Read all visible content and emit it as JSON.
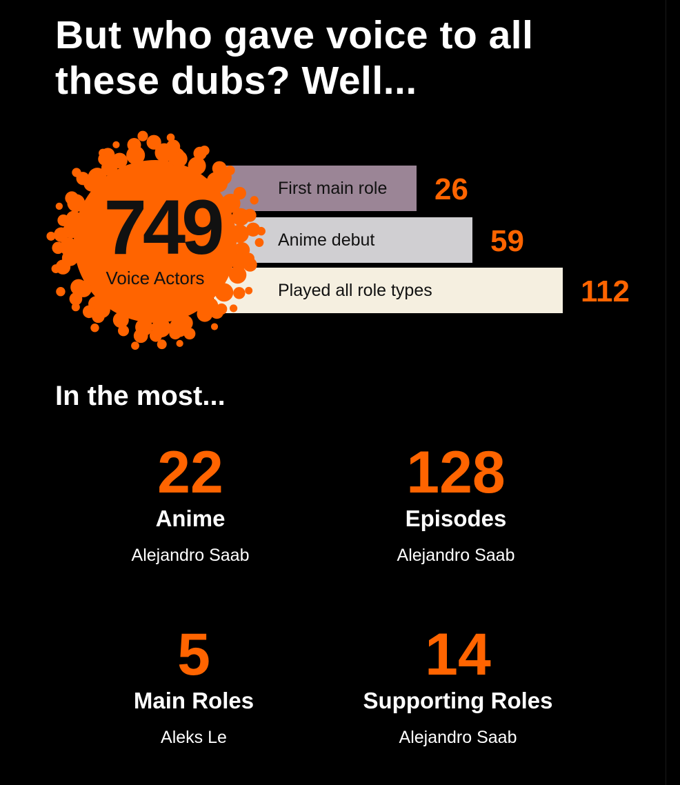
{
  "title": "But who gave voice to all these dubs? Well...",
  "colors": {
    "accent": "#ff6400",
    "background": "#000000"
  },
  "summary": {
    "total": "749",
    "total_label": "Voice Actors"
  },
  "chart_data": {
    "type": "bar",
    "orientation": "horizontal",
    "categories": [
      "First main role",
      "Anime debut",
      "Played all role types"
    ],
    "values": [
      26,
      59,
      112
    ],
    "bar_colors": [
      "#9b8596",
      "#d0cfd2",
      "#f5efe0"
    ]
  },
  "section_title": "In the most...",
  "stats": [
    {
      "value": "22",
      "label": "Anime",
      "person": "Alejandro Saab"
    },
    {
      "value": "128",
      "label": "Episodes",
      "person": "Alejandro Saab"
    },
    {
      "value": "5",
      "label": "Main Roles",
      "person": "Aleks Le"
    },
    {
      "value": "14",
      "label": "Supporting Roles",
      "person": "Alejandro Saab"
    }
  ]
}
